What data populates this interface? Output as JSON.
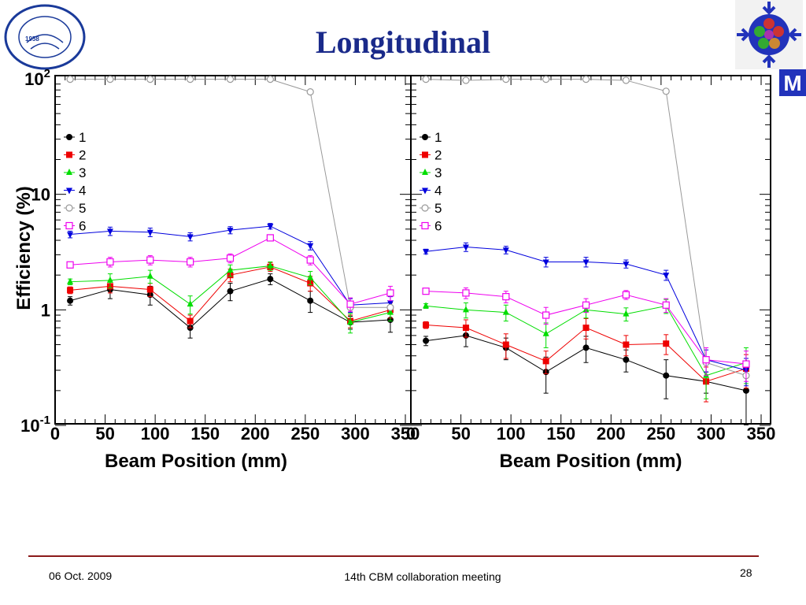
{
  "slide": {
    "title": "Longitudinal",
    "footer_date": "06 Oct. 2009",
    "footer_meeting": "14th CBM collaboration meeting",
    "page_number": "28"
  },
  "logos": {
    "left": {
      "year": "1958",
      "icon": "university-seal-icon"
    },
    "right": {
      "letter": "M",
      "icon": "cbm-detector-logo-icon"
    }
  },
  "chart_data": [
    {
      "type": "scatter",
      "title": "",
      "xlabel": "Beam Position (mm)",
      "ylabel": "Efficiency (%)",
      "xlim": [
        0,
        350
      ],
      "ylim": [
        0.1,
        100
      ],
      "yscale": "log",
      "xticks": [
        "0",
        "50",
        "100",
        "150",
        "200",
        "250",
        "300",
        "350"
      ],
      "yticks": [
        {
          "base": "10",
          "exp": "-1"
        },
        {
          "base": "1",
          "exp": ""
        },
        {
          "base": "10",
          "exp": ""
        },
        {
          "base": "10",
          "exp": "2"
        }
      ],
      "legend_position": "top-left",
      "x": [
        15,
        55,
        95,
        135,
        175,
        215,
        255,
        295,
        335
      ],
      "series": [
        {
          "name": "1",
          "color": "#000000",
          "marker": "circle-filled",
          "values": [
            1.2,
            1.5,
            1.35,
            0.7,
            1.45,
            1.85,
            1.2,
            0.78,
            0.82
          ],
          "errors": [
            0.1,
            0.25,
            0.25,
            0.13,
            0.25,
            0.2,
            0.25,
            0.1,
            0.18
          ]
        },
        {
          "name": "2",
          "color": "#ee0000",
          "marker": "square-filled",
          "values": [
            1.48,
            1.6,
            1.5,
            0.8,
            2.0,
            2.35,
            1.7,
            0.8,
            1.0
          ],
          "errors": [
            0.1,
            0.2,
            0.2,
            0.1,
            0.25,
            0.2,
            0.25,
            0.1,
            0.15
          ]
        },
        {
          "name": "3",
          "color": "#00dd00",
          "marker": "triangle-up-filled",
          "values": [
            1.75,
            1.8,
            1.95,
            1.12,
            2.2,
            2.4,
            1.9,
            0.78,
            0.95
          ],
          "errors": [
            0.1,
            0.25,
            0.25,
            0.2,
            0.25,
            0.2,
            0.25,
            0.15,
            0.15
          ]
        },
        {
          "name": "4",
          "color": "#0000dd",
          "marker": "triangle-down-filled",
          "values": [
            4.5,
            4.8,
            4.7,
            4.3,
            4.9,
            5.3,
            3.6,
            1.1,
            1.15
          ],
          "errors": [
            0.3,
            0.4,
            0.4,
            0.35,
            0.35,
            0.3,
            0.3,
            0.15,
            0.15
          ]
        },
        {
          "name": "5",
          "color": "#999999",
          "marker": "circle-open",
          "values": [
            99,
            99,
            99,
            99,
            99,
            99,
            77,
            1.05,
            1.05
          ],
          "errors": [
            0,
            0,
            0,
            0,
            0,
            0,
            0,
            0,
            0
          ]
        },
        {
          "name": "6",
          "color": "#ee00ee",
          "marker": "square-open",
          "values": [
            2.45,
            2.6,
            2.7,
            2.6,
            2.8,
            4.2,
            2.7,
            1.12,
            1.4
          ],
          "errors": [
            0.1,
            0.25,
            0.25,
            0.25,
            0.25,
            0.2,
            0.25,
            0.15,
            0.2
          ]
        }
      ]
    },
    {
      "type": "scatter",
      "title": "",
      "xlabel": "Beam Position (mm)",
      "ylabel": "",
      "xlim": [
        0,
        350
      ],
      "ylim": [
        0.1,
        100
      ],
      "yscale": "log",
      "xticks": [
        "0",
        "50",
        "100",
        "150",
        "200",
        "250",
        "300",
        "350"
      ],
      "legend_position": "top-left",
      "x": [
        15,
        55,
        95,
        135,
        175,
        215,
        255,
        295,
        335
      ],
      "series": [
        {
          "name": "1",
          "color": "#000000",
          "marker": "circle-filled",
          "values": [
            0.54,
            0.6,
            0.47,
            0.29,
            0.47,
            0.37,
            0.27,
            0.24,
            0.2
          ],
          "errors": [
            0.05,
            0.12,
            0.1,
            0.1,
            0.12,
            0.08,
            0.1,
            0.05,
            0.1
          ]
        },
        {
          "name": "2",
          "color": "#ee0000",
          "marker": "square-filled",
          "values": [
            0.74,
            0.7,
            0.5,
            0.36,
            0.7,
            0.5,
            0.51,
            0.24,
            0.31
          ],
          "errors": [
            0.05,
            0.12,
            0.12,
            0.08,
            0.14,
            0.1,
            0.1,
            0.08,
            0.1
          ]
        },
        {
          "name": "3",
          "color": "#00dd00",
          "marker": "triangle-up-filled",
          "values": [
            1.08,
            1.0,
            0.95,
            0.62,
            1.0,
            0.92,
            1.08,
            0.27,
            0.35
          ],
          "errors": [
            0.05,
            0.15,
            0.15,
            0.15,
            0.15,
            0.12,
            0.15,
            0.1,
            0.12
          ]
        },
        {
          "name": "4",
          "color": "#0000dd",
          "marker": "triangle-down-filled",
          "values": [
            3.2,
            3.5,
            3.3,
            2.6,
            2.6,
            2.5,
            2.0,
            0.37,
            0.3
          ],
          "errors": [
            0.15,
            0.3,
            0.25,
            0.25,
            0.25,
            0.2,
            0.2,
            0.08,
            0.08
          ]
        },
        {
          "name": "5",
          "color": "#999999",
          "marker": "circle-open",
          "values": [
            99,
            97,
            99,
            99,
            99,
            97,
            78,
            0.35,
            0.27
          ],
          "errors": [
            0,
            0,
            0,
            0,
            0,
            0,
            0,
            0,
            0
          ]
        },
        {
          "name": "6",
          "color": "#ee00ee",
          "marker": "square-open",
          "values": [
            1.45,
            1.4,
            1.3,
            0.9,
            1.1,
            1.35,
            1.1,
            0.37,
            0.34
          ],
          "errors": [
            0.05,
            0.15,
            0.15,
            0.15,
            0.15,
            0.12,
            0.15,
            0.1,
            0.1
          ]
        }
      ]
    }
  ]
}
